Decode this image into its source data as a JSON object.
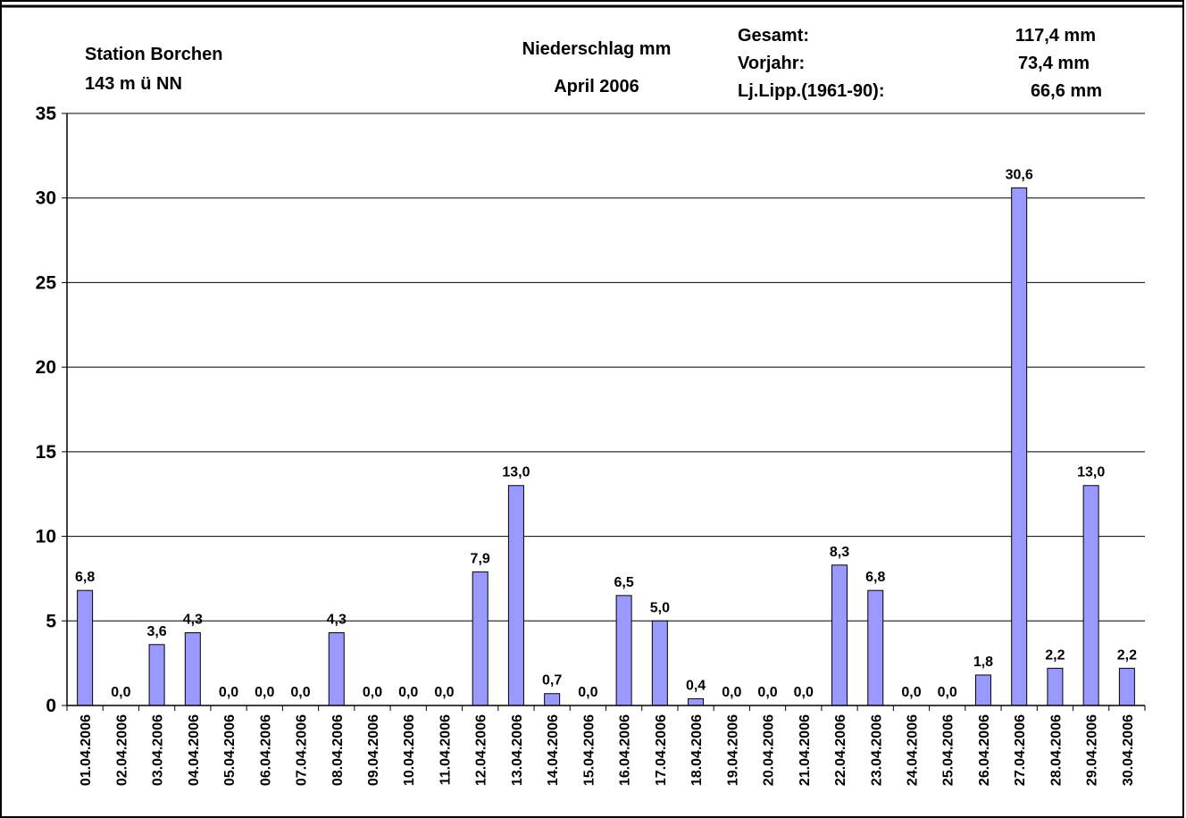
{
  "header": {
    "station_name": "Station Borchen",
    "station_altitude": "143 m ü NN",
    "measure": "Niederschlag mm",
    "period": "April 2006",
    "stats": [
      {
        "label": "Gesamt:",
        "value": "117,4 mm"
      },
      {
        "label": "Vorjahr:",
        "value": "73,4 mm"
      },
      {
        "label": "Lj.Lipp.(1961-90):",
        "value": "66,6 mm"
      }
    ]
  },
  "chart_data": {
    "type": "bar",
    "title": "Niederschlag mm",
    "subtitle": "April 2006",
    "ylim": [
      0,
      35
    ],
    "yticks": [
      0,
      5,
      10,
      15,
      20,
      25,
      30,
      35
    ],
    "grid": true,
    "legend": "none",
    "bar_color": "#9999ff",
    "categories": [
      "01.04.2006",
      "02.04.2006",
      "03.04.2006",
      "04.04.2006",
      "05.04.2006",
      "06.04.2006",
      "07.04.2006",
      "08.04.2006",
      "09.04.2006",
      "10.04.2006",
      "11.04.2006",
      "12.04.2006",
      "13.04.2006",
      "14.04.2006",
      "15.04.2006",
      "16.04.2006",
      "17.04.2006",
      "18.04.2006",
      "19.04.2006",
      "20.04.2006",
      "21.04.2006",
      "22.04.2006",
      "23.04.2006",
      "24.04.2006",
      "25.04.2006",
      "26.04.2006",
      "27.04.2006",
      "28.04.2006",
      "29.04.2006",
      "30.04.2006"
    ],
    "values": [
      6.8,
      0.0,
      3.6,
      4.3,
      0.0,
      0.0,
      0.0,
      4.3,
      0.0,
      0.0,
      0.0,
      7.9,
      13.0,
      0.7,
      0.0,
      6.5,
      5.0,
      0.4,
      0.0,
      0.0,
      0.0,
      8.3,
      6.8,
      0.0,
      0.0,
      1.8,
      30.6,
      2.2,
      13.0,
      2.2
    ],
    "value_labels": [
      "6,8",
      "0,0",
      "3,6",
      "4,3",
      "0,0",
      "0,0",
      "0,0",
      "4,3",
      "0,0",
      "0,0",
      "0,0",
      "7,9",
      "13,0",
      "0,7",
      "0,0",
      "6,5",
      "5,0",
      "0,4",
      "0,0",
      "0,0",
      "0,0",
      "8,3",
      "6,8",
      "0,0",
      "0,0",
      "1,8",
      "30,6",
      "2,2",
      "13,0",
      "2,2"
    ]
  }
}
